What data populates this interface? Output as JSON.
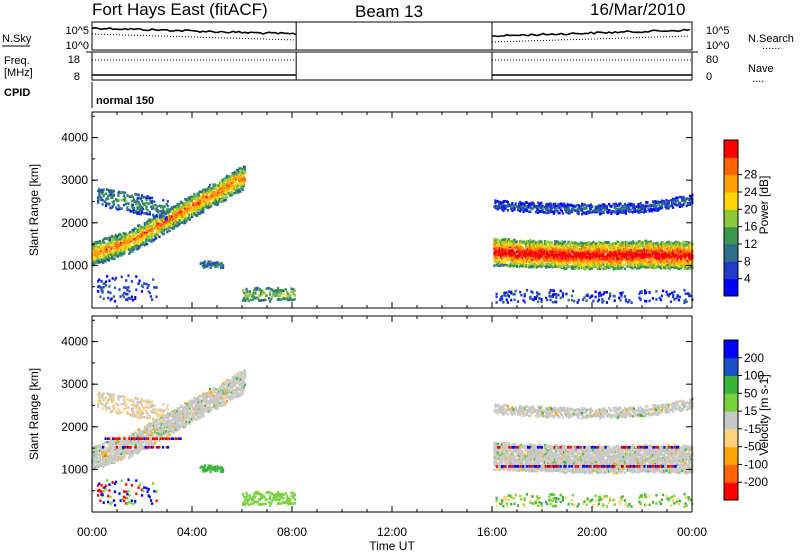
{
  "header": {
    "station": "Fort Hays East (fitACF)",
    "beam": "Beam 13",
    "date": "16/Mar/2010"
  },
  "top_panels": {
    "nsky_label": "N.Sky",
    "nsearch_label": "N.Search",
    "nsearch_dots": "......",
    "noise_ticks": [
      "10^5",
      "10^0"
    ],
    "freq_label_1": "Freq.",
    "freq_label_2": "[MHz]",
    "freq_ticks": [
      "18",
      "8"
    ],
    "nave_label": "Nave",
    "nave_dots": "....",
    "nave_ticks": [
      "80",
      "0"
    ],
    "cpid_label": "CPID",
    "cpid_value": "normal 150"
  },
  "colors": {
    "power": [
      "#0000ff",
      "#1e3cc8",
      "#2d6e8c",
      "#3c9650",
      "#8cc83c",
      "#ffd700",
      "#ffa000",
      "#ff6400",
      "#ff0000"
    ],
    "velocity": [
      "#ff0000",
      "#ff6400",
      "#ffa500",
      "#ffd27a",
      "#c8c8c8",
      "#78d23c",
      "#3cb43c",
      "#1e50c8",
      "#0000ff"
    ]
  },
  "chart_data": [
    {
      "type": "heatmap",
      "panel": "power",
      "xlabel": "Time UT",
      "ylabel": "Slant Range [km]",
      "xlim": [
        "00:00",
        "24:00"
      ],
      "ylim": [
        0,
        4600
      ],
      "x_ticks": [
        "00:00",
        "04:00",
        "08:00",
        "12:00",
        "16:00",
        "20:00",
        "00:00"
      ],
      "y_ticks": [
        "1000",
        "2000",
        "3000",
        "4000"
      ],
      "colorbar": {
        "label": "Power [dB]",
        "ticks": [
          "4",
          "8",
          "12",
          "16",
          "20",
          "24",
          "28"
        ]
      },
      "data_intervals": [
        [
          "00:00",
          "08:10"
        ],
        [
          "16:00",
          "24:00"
        ]
      ]
    },
    {
      "type": "heatmap",
      "panel": "velocity",
      "xlabel": "Time UT",
      "ylabel": "Slant Range [km]",
      "xlim": [
        "00:00",
        "24:00"
      ],
      "ylim": [
        0,
        4600
      ],
      "x_ticks": [
        "00:00",
        "04:00",
        "08:00",
        "12:00",
        "16:00",
        "20:00",
        "00:00"
      ],
      "y_ticks": [
        "1000",
        "2000",
        "3000",
        "4000"
      ],
      "colorbar": {
        "label": "Velocity [m s-1]",
        "ticks": [
          "200",
          "100",
          "50",
          "15",
          "-15",
          "-50",
          "-100",
          "-200"
        ]
      },
      "data_intervals": [
        [
          "00:00",
          "08:10"
        ],
        [
          "16:00",
          "24:00"
        ]
      ]
    }
  ]
}
